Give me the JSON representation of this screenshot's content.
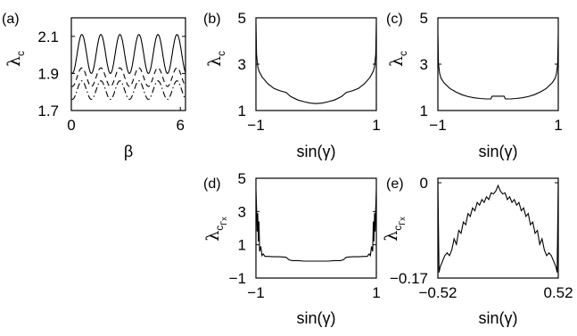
{
  "chart_data": [
    {
      "panel": "(a)",
      "type": "line",
      "xlabel": "β",
      "ylabel": {
        "symbol": "λ",
        "sub": "c"
      },
      "xlim": [
        0,
        6.2832
      ],
      "ylim": [
        1.7,
        2.2
      ],
      "xticks": [
        "0",
        "6"
      ],
      "xtick_values": [
        0,
        6
      ],
      "yticks": [
        "1.7",
        "1.9",
        "2.1"
      ],
      "ytick_values": [
        1.7,
        1.9,
        2.1
      ],
      "series": [
        {
          "style": "solid",
          "x_range": [
            0,
            6.2832
          ],
          "wave": {
            "base": 2.005,
            "amp": 0.105,
            "freq": 6,
            "phase": -1.9
          }
        },
        {
          "style": "dashed",
          "x_range": [
            0,
            6.2832
          ],
          "wave": {
            "base": 1.88,
            "amp": 0.05,
            "freq": 6,
            "phase": -1.9
          }
        },
        {
          "style": "dashdot",
          "x_range": [
            0,
            6.2832
          ],
          "wave": {
            "base": 1.81,
            "amp": 0.05,
            "freq": 6,
            "phase": -1.9
          }
        }
      ]
    },
    {
      "panel": "(b)",
      "type": "line",
      "xlabel": "sin(γ)",
      "ylabel": {
        "symbol": "λ",
        "sub": "c"
      },
      "xlim": [
        -1,
        1
      ],
      "ylim": [
        1,
        5
      ],
      "xticks": [
        "−1",
        "1"
      ],
      "xtick_values": [
        -1,
        1
      ],
      "yticks": [
        "1",
        "3",
        "5"
      ],
      "ytick_values": [
        1,
        3,
        5
      ],
      "series": [
        {
          "style": "solid",
          "x": [
            -1,
            -0.99,
            -0.97,
            -0.95,
            -0.9,
            -0.8,
            -0.7,
            -0.6,
            -0.5,
            -0.42,
            -0.3,
            -0.2,
            -0.1,
            0,
            0.1,
            0.2,
            0.3,
            0.42,
            0.5,
            0.6,
            0.7,
            0.8,
            0.9,
            0.95,
            0.97,
            0.99,
            1
          ],
          "y": [
            4.75,
            3.4,
            2.9,
            2.7,
            2.45,
            2.15,
            1.95,
            1.85,
            1.78,
            1.6,
            1.45,
            1.38,
            1.32,
            1.3,
            1.32,
            1.38,
            1.45,
            1.6,
            1.78,
            1.85,
            1.95,
            2.15,
            2.45,
            2.7,
            2.9,
            3.4,
            4.75
          ]
        }
      ]
    },
    {
      "panel": "(c)",
      "type": "line",
      "xlabel": "sin(γ)",
      "ylabel": {
        "symbol": "λ",
        "sub": "c"
      },
      "xlim": [
        -1,
        1
      ],
      "ylim": [
        1,
        5
      ],
      "xticks": [
        "−1",
        "1"
      ],
      "xtick_values": [
        -1,
        1
      ],
      "yticks": [
        "1",
        "3",
        "5"
      ],
      "ytick_values": [
        1,
        3,
        5
      ],
      "series": [
        {
          "style": "solid",
          "x": [
            -1,
            -0.99,
            -0.97,
            -0.95,
            -0.9,
            -0.8,
            -0.7,
            -0.6,
            -0.5,
            -0.4,
            -0.3,
            -0.2,
            -0.12,
            -0.1,
            0.1,
            0.12,
            0.2,
            0.3,
            0.4,
            0.5,
            0.6,
            0.7,
            0.8,
            0.9,
            0.95,
            0.97,
            0.99,
            1
          ],
          "y": [
            4.3,
            3.0,
            2.6,
            2.4,
            2.2,
            1.95,
            1.8,
            1.68,
            1.6,
            1.55,
            1.52,
            1.5,
            1.5,
            1.62,
            1.62,
            1.5,
            1.5,
            1.52,
            1.55,
            1.6,
            1.68,
            1.8,
            1.95,
            2.2,
            2.4,
            2.6,
            3.0,
            4.3
          ]
        }
      ]
    },
    {
      "panel": "(d)",
      "type": "line",
      "xlabel": "sin(γ)",
      "ylabel": {
        "symbol": "λ",
        "sub": "c",
        "sub2": "Γx"
      },
      "xlim": [
        -1,
        1
      ],
      "ylim": [
        -1,
        5
      ],
      "xticks": [
        "−1",
        "1"
      ],
      "xtick_values": [
        -1,
        1
      ],
      "yticks": [
        "−1",
        "1",
        "3",
        "5"
      ],
      "ytick_values": [
        -1,
        1,
        3,
        5
      ],
      "series": [
        {
          "style": "solid",
          "x": [
            -1,
            -0.99,
            -0.98,
            -0.97,
            -0.96,
            -0.95,
            -0.94,
            -0.92,
            -0.9,
            -0.88,
            -0.85,
            -0.8,
            -0.7,
            -0.6,
            -0.5,
            -0.45,
            -0.4,
            -0.3,
            -0.2,
            -0.1,
            0,
            0.1,
            0.2,
            0.3,
            0.4,
            0.45,
            0.5,
            0.6,
            0.7,
            0.8,
            0.85,
            0.88,
            0.9,
            0.92,
            0.94,
            0.95,
            0.96,
            0.97,
            0.98,
            0.99,
            1
          ],
          "y": [
            4.3,
            3.2,
            1.8,
            2.9,
            1.2,
            2.4,
            0.6,
            0.9,
            0.35,
            0.45,
            0.3,
            0.3,
            0.28,
            0.28,
            0.25,
            0.1,
            0.05,
            0.05,
            0.02,
            0.02,
            0.02,
            0.02,
            0.02,
            0.05,
            0.05,
            0.1,
            0.25,
            0.28,
            0.28,
            0.3,
            0.3,
            0.45,
            0.35,
            0.9,
            0.6,
            2.4,
            1.2,
            2.9,
            1.8,
            3.2,
            4.3
          ]
        }
      ]
    },
    {
      "panel": "(e)",
      "type": "line",
      "xlabel": "sin(γ)",
      "ylabel": {
        "symbol": "λ",
        "sub": "c",
        "sub2": "Γx"
      },
      "xlim": [
        -0.52,
        0.52
      ],
      "ylim": [
        -0.17,
        0.008
      ],
      "xticks": [
        "−0.52",
        "0.52"
      ],
      "xtick_values": [
        -0.52,
        0.52
      ],
      "yticks": [
        "−0.17",
        "0"
      ],
      "ytick_values": [
        -0.17,
        0
      ],
      "series": [
        {
          "style": "solid",
          "x": [
            -0.52,
            -0.51,
            -0.5,
            -0.48,
            -0.46,
            -0.44,
            -0.42,
            -0.4,
            -0.38,
            -0.36,
            -0.34,
            -0.32,
            -0.3,
            -0.28,
            -0.26,
            -0.24,
            -0.22,
            -0.2,
            -0.18,
            -0.16,
            -0.14,
            -0.12,
            -0.1,
            -0.08,
            -0.06,
            -0.04,
            -0.02,
            0,
            0.02,
            0.04,
            0.06,
            0.08,
            0.1,
            0.12,
            0.14,
            0.16,
            0.18,
            0.2,
            0.22,
            0.24,
            0.26,
            0.28,
            0.3,
            0.32,
            0.34,
            0.36,
            0.38,
            0.4,
            0.42,
            0.44,
            0.46,
            0.48,
            0.5,
            0.51,
            0.52
          ],
          "y": [
            0.0,
            -0.16,
            -0.15,
            -0.14,
            -0.13,
            -0.125,
            -0.13,
            -0.12,
            -0.1,
            -0.11,
            -0.085,
            -0.09,
            -0.07,
            -0.075,
            -0.055,
            -0.06,
            -0.045,
            -0.05,
            -0.035,
            -0.04,
            -0.03,
            -0.035,
            -0.025,
            -0.03,
            -0.018,
            -0.02,
            -0.015,
            -0.005,
            -0.015,
            -0.02,
            -0.018,
            -0.03,
            -0.025,
            -0.035,
            -0.03,
            -0.04,
            -0.035,
            -0.05,
            -0.045,
            -0.06,
            -0.055,
            -0.075,
            -0.07,
            -0.09,
            -0.085,
            -0.11,
            -0.1,
            -0.12,
            -0.13,
            -0.125,
            -0.13,
            -0.14,
            -0.15,
            -0.16,
            0.0
          ]
        }
      ]
    }
  ]
}
